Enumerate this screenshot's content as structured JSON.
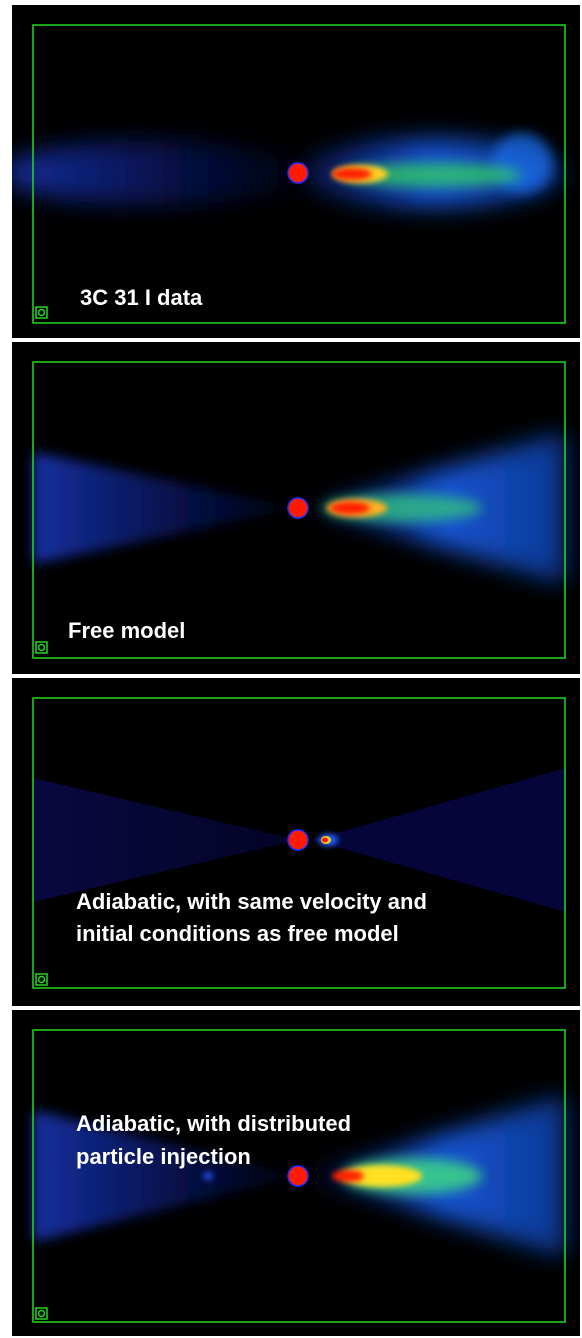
{
  "panels": [
    {
      "label": [
        "3C 31 I data"
      ]
    },
    {
      "label": [
        "Free model"
      ]
    },
    {
      "label": [
        "Adiabatic, with same velocity and",
        "initial conditions as free model"
      ]
    },
    {
      "label": [
        "Adiabatic, with distributed",
        "particle injection"
      ]
    }
  ]
}
